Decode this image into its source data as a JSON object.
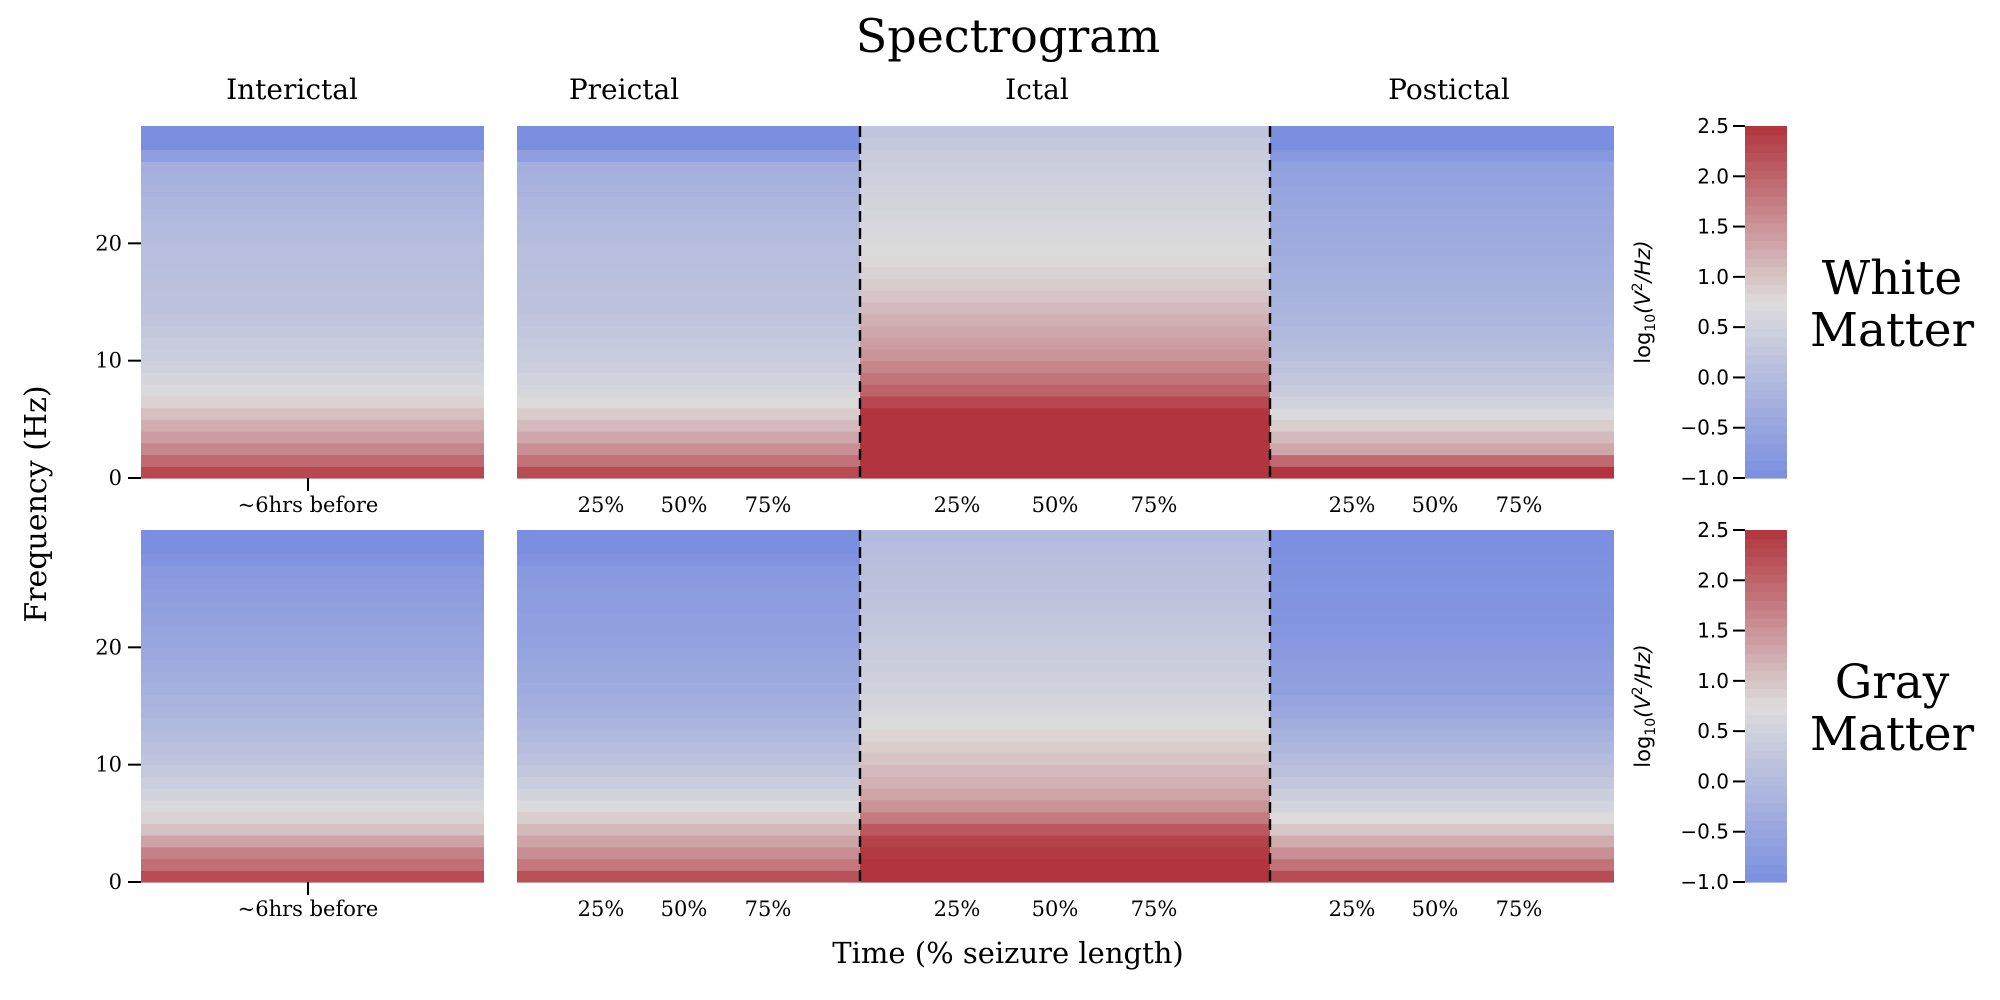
{
  "figure": {
    "title": "Spectrogram",
    "ylabel": "Frequency (Hz)",
    "xlabel": "Time (% seizure length)"
  },
  "chart_data": {
    "type": "heatmap",
    "title": "Spectrogram",
    "xlabel": "Time (% seizure length)",
    "ylabel": "Frequency (Hz)",
    "ylim": [
      0,
      30
    ],
    "y_ticks": [
      0,
      10,
      20
    ],
    "y_tick_labels": [
      "0",
      "10",
      "20"
    ],
    "interictal_tick_label": "~6hrs before",
    "phase_ticks": [
      25,
      50,
      75
    ],
    "phase_tick_labels": [
      "25%",
      "50%",
      "75%"
    ],
    "phases": [
      "Interictal",
      "Preictal",
      "Ictal",
      "Postictal"
    ],
    "colormap": "coolwarm",
    "color_low": "#7b8fe0",
    "color_mid": "#dddcdc",
    "color_high": "#b2343e",
    "colorbar": {
      "label": "log10(V²/Hz)",
      "label_main": "log",
      "label_sub": "10",
      "label_rest": "(V",
      "label_sup": "2",
      "label_end": "/Hz)",
      "min": -1.0,
      "max": 2.5,
      "ticks": [
        -1.0,
        -0.5,
        0.0,
        0.5,
        1.0,
        1.5,
        2.0,
        2.5
      ],
      "tick_labels": [
        "−1.0",
        "−0.5",
        "0.0",
        "0.5",
        "1.0",
        "1.5",
        "2.0",
        "2.5"
      ]
    },
    "rows": [
      {
        "name_line1": "White",
        "name_line2": "Matter",
        "phases": [
          {
            "name": "Interictal",
            "profile": [
              [
                0,
                2.5
              ],
              [
                1,
                2.1
              ],
              [
                2,
                1.8
              ],
              [
                3,
                1.5
              ],
              [
                5,
                1.15
              ],
              [
                7,
                0.75
              ],
              [
                10,
                0.45
              ],
              [
                14,
                0.2
              ],
              [
                20,
                0.05
              ],
              [
                27,
                -0.3
              ],
              [
                28,
                -1.0
              ],
              [
                30,
                -1.0
              ]
            ]
          },
          {
            "name": "Preictal",
            "profile": [
              [
                0,
                2.5
              ],
              [
                1,
                2.0
              ],
              [
                2,
                1.7
              ],
              [
                3,
                1.4
              ],
              [
                5,
                1.0
              ],
              [
                7,
                0.65
              ],
              [
                10,
                0.4
              ],
              [
                14,
                0.2
              ],
              [
                20,
                0.05
              ],
              [
                27,
                -0.3
              ],
              [
                28,
                -1.0
              ],
              [
                30,
                -1.0
              ]
            ]
          },
          {
            "name": "Ictal",
            "profile": [
              [
                0,
                2.5
              ],
              [
                3,
                2.5
              ],
              [
                6,
                2.5
              ],
              [
                7,
                2.1
              ],
              [
                10,
                1.55
              ],
              [
                13,
                1.25
              ],
              [
                16,
                0.95
              ],
              [
                20,
                0.7
              ],
              [
                25,
                0.5
              ],
              [
                28,
                0.35
              ],
              [
                30,
                0.2
              ]
            ]
          },
          {
            "name": "Postictal",
            "profile": [
              [
                0,
                2.5
              ],
              [
                1,
                2.5
              ],
              [
                2,
                1.4
              ],
              [
                4,
                1.0
              ],
              [
                6,
                0.6
              ],
              [
                8,
                0.3
              ],
              [
                11,
                0.05
              ],
              [
                14,
                -0.15
              ],
              [
                20,
                -0.35
              ],
              [
                27,
                -0.6
              ],
              [
                28,
                -1.0
              ],
              [
                30,
                -1.0
              ]
            ]
          }
        ]
      },
      {
        "name_line1": "Gray",
        "name_line2": "Matter",
        "phases": [
          {
            "name": "Interictal",
            "profile": [
              [
                0,
                2.5
              ],
              [
                1,
                2.0
              ],
              [
                3,
                1.6
              ],
              [
                4,
                1.1
              ],
              [
                7,
                0.6
              ],
              [
                10,
                0.25
              ],
              [
                14,
                -0.1
              ],
              [
                20,
                -0.45
              ],
              [
                27,
                -0.8
              ],
              [
                28,
                -1.0
              ],
              [
                30,
                -1.0
              ]
            ]
          },
          {
            "name": "Preictal",
            "profile": [
              [
                0,
                2.5
              ],
              [
                1,
                1.9
              ],
              [
                3,
                1.45
              ],
              [
                5,
                1.0
              ],
              [
                7,
                0.6
              ],
              [
                10,
                0.2
              ],
              [
                14,
                -0.2
              ],
              [
                20,
                -0.55
              ],
              [
                27,
                -0.8
              ],
              [
                28,
                -1.0
              ],
              [
                30,
                -1.0
              ]
            ]
          },
          {
            "name": "Ictal",
            "profile": [
              [
                0,
                2.5
              ],
              [
                2,
                2.5
              ],
              [
                4,
                2.3
              ],
              [
                6,
                1.6
              ],
              [
                8,
                1.25
              ],
              [
                11,
                0.95
              ],
              [
                15,
                0.6
              ],
              [
                20,
                0.35
              ],
              [
                25,
                0.15
              ],
              [
                30,
                0.0
              ]
            ]
          },
          {
            "name": "Postictal",
            "profile": [
              [
                0,
                2.5
              ],
              [
                1,
                2.0
              ],
              [
                2,
                1.7
              ],
              [
                4,
                1.1
              ],
              [
                6,
                0.65
              ],
              [
                9,
                0.2
              ],
              [
                13,
                -0.25
              ],
              [
                16,
                -0.6
              ],
              [
                22,
                -0.85
              ],
              [
                30,
                -1.0
              ]
            ]
          }
        ]
      }
    ]
  }
}
